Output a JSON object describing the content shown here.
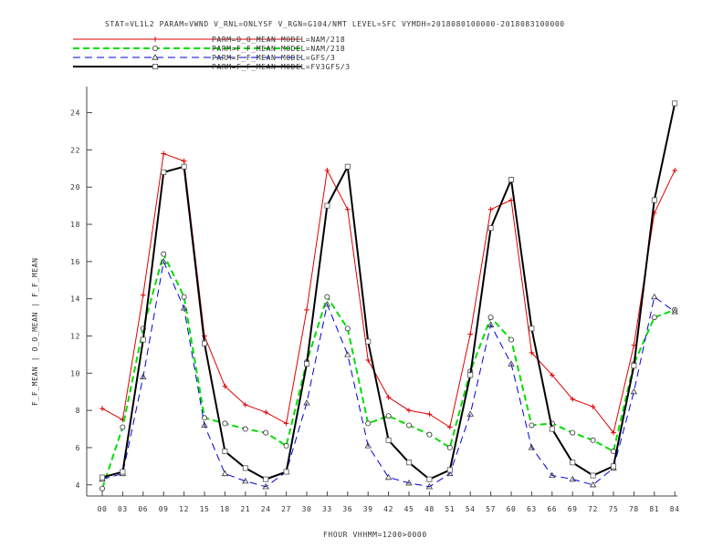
{
  "chart_data": {
    "type": "line",
    "title": "STAT=VL1L2 PARAM=VWND V_RNL=ONLYSF V_RGN=G104/NMT LEVEL=SFC VYMDH=2018080100000-2018083100000",
    "xlabel": "FHOUR VHHMM=1200>0000",
    "ylabel": "F_F_MEAN | O_O_MEAN | F_F_MEAN",
    "categories": [
      "00",
      "03",
      "06",
      "09",
      "12",
      "15",
      "18",
      "21",
      "24",
      "27",
      "30",
      "33",
      "36",
      "39",
      "42",
      "45",
      "48",
      "51",
      "54",
      "57",
      "60",
      "63",
      "66",
      "69",
      "72",
      "75",
      "78",
      "81",
      "84"
    ],
    "ylim": [
      3.4,
      25.4
    ],
    "yticks": [
      "4",
      "6",
      "8",
      "10",
      "12",
      "14",
      "16",
      "18",
      "20",
      "22",
      "24"
    ],
    "grid": false,
    "legend_position": "top-left",
    "series": [
      {
        "name": "PARM=O_O_MEAN MODEL=NAM/218",
        "color": "#dd0000",
        "dash": "solid",
        "marker": "plus",
        "values": [
          8.1,
          7.5,
          14.2,
          21.8,
          21.4,
          12.0,
          9.3,
          8.3,
          7.9,
          7.3,
          13.4,
          20.9,
          18.8,
          10.7,
          8.7,
          8.0,
          7.8,
          7.1,
          12.1,
          18.8,
          19.3,
          11.1,
          9.9,
          8.6,
          8.2,
          6.8,
          11.5,
          18.6,
          20.9
        ]
      },
      {
        "name": "PARM=F_F_MEAN MODEL=NAM/218",
        "color": "#00dd00",
        "dash": "dashed",
        "marker": "circle",
        "values": [
          3.8,
          7.1,
          12.4,
          16.4,
          14.1,
          7.6,
          7.3,
          7.0,
          6.8,
          6.1,
          10.6,
          14.1,
          12.4,
          7.3,
          7.7,
          7.2,
          6.7,
          6.0,
          10.1,
          13.0,
          11.8,
          7.2,
          7.3,
          6.8,
          6.4,
          5.8,
          10.5,
          13.0,
          13.4
        ]
      },
      {
        "name": "PARM=F_F_MEAN MODEL=GFS/3",
        "color": "#0000dd",
        "dash": "dashed",
        "marker": "triangle",
        "values": [
          4.3,
          4.6,
          9.8,
          16.0,
          13.5,
          7.2,
          4.6,
          4.2,
          3.9,
          4.7,
          8.4,
          13.7,
          11.0,
          6.1,
          4.4,
          4.1,
          3.9,
          4.6,
          7.8,
          12.6,
          10.5,
          6.0,
          4.5,
          4.3,
          4.0,
          4.9,
          9.0,
          14.1,
          13.3
        ]
      },
      {
        "name": "PARM=F_F_MEAN MODEL=FV3GFS/3",
        "color": "#000000",
        "dash": "solid",
        "marker": "square",
        "values": [
          4.4,
          4.7,
          11.8,
          20.8,
          21.1,
          11.6,
          5.8,
          4.9,
          4.3,
          4.7,
          10.5,
          19.0,
          21.1,
          11.7,
          6.4,
          5.2,
          4.3,
          4.8,
          9.9,
          17.8,
          20.4,
          12.4,
          7.0,
          5.2,
          4.5,
          5.0,
          10.4,
          19.3,
          24.5
        ]
      }
    ]
  }
}
